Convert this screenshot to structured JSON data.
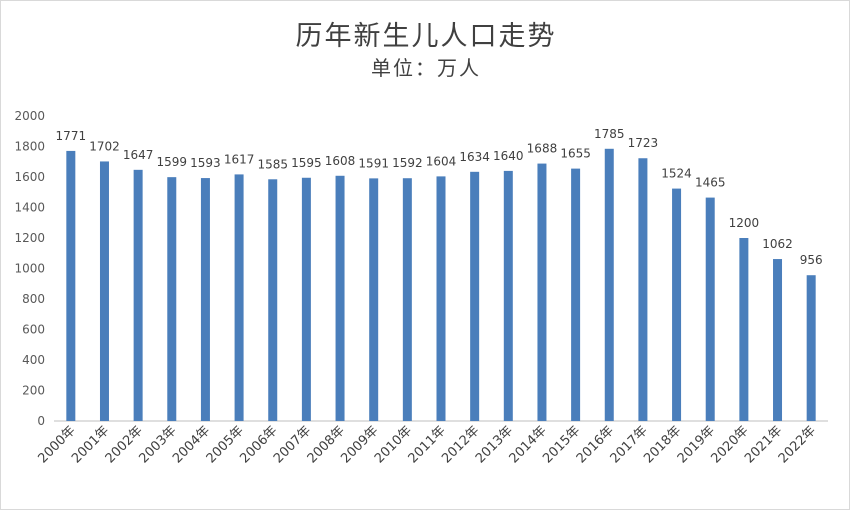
{
  "chart_data": {
    "type": "bar",
    "title": "历年新生儿人口走势",
    "subtitle": "单位：万人",
    "categories": [
      "2000年",
      "2001年",
      "2002年",
      "2003年",
      "2004年",
      "2005年",
      "2006年",
      "2007年",
      "2008年",
      "2009年",
      "2010年",
      "2011年",
      "2012年",
      "2013年",
      "2014年",
      "2015年",
      "2016年",
      "2017年",
      "2018年",
      "2019年",
      "2020年",
      "2021年",
      "2022年"
    ],
    "values": [
      1771,
      1702,
      1647,
      1599,
      1593,
      1617,
      1585,
      1595,
      1608,
      1591,
      1592,
      1604,
      1634,
      1640,
      1688,
      1655,
      1785,
      1723,
      1524,
      1465,
      1200,
      1062,
      956
    ],
    "ylim": [
      0,
      2000
    ],
    "yticks": [
      0,
      200,
      400,
      600,
      800,
      1000,
      1200,
      1400,
      1600,
      1800,
      2000
    ],
    "bar_color": "#4a7ebb",
    "grid": false,
    "legend": "none"
  }
}
